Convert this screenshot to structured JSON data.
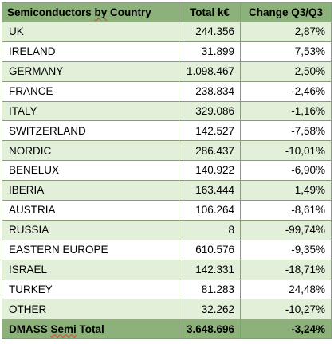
{
  "table": {
    "headers": {
      "country_prefix": "Semiconductors ",
      "country_word": "by",
      "country_suffix": " Country",
      "total": "Total k€",
      "change": "Change Q3/Q3"
    },
    "rows": [
      {
        "country": "UK",
        "total": "244.356",
        "change": "2,87%"
      },
      {
        "country": "IRELAND",
        "total": "31.899",
        "change": "7,53%"
      },
      {
        "country": "GERMANY",
        "total": "1.098.467",
        "change": "2,50%"
      },
      {
        "country": "FRANCE",
        "total": "238.834",
        "change": "-2,46%"
      },
      {
        "country": "ITALY",
        "total": "329.086",
        "change": "-1,16%"
      },
      {
        "country": "SWITZERLAND",
        "total": "142.527",
        "change": "-7,58%"
      },
      {
        "country": "NORDIC",
        "total": "286.437",
        "change": "-10,01%"
      },
      {
        "country": "BENELUX",
        "total": "140.922",
        "change": "-6,90%"
      },
      {
        "country": "IBERIA",
        "total": "163.444",
        "change": "1,49%"
      },
      {
        "country": "AUSTRIA",
        "total": "106.264",
        "change": "-8,61%"
      },
      {
        "country": "RUSSIA",
        "total": "8",
        "change": "-99,74%"
      },
      {
        "country": "EASTERN EUROPE",
        "total": "610.576",
        "change": "-9,35%"
      },
      {
        "country": "ISRAEL",
        "total": "142.331",
        "change": "-18,71%"
      },
      {
        "country": "TURKEY",
        "total": "81.283",
        "change": "24,48%"
      },
      {
        "country": "OTHER",
        "total": "32.262",
        "change": "-10,27%"
      }
    ],
    "footer": {
      "label_prefix": "DMASS ",
      "label_word": "Semi",
      "label_suffix": " Total",
      "total": "3.648.696",
      "change": "-3,24%"
    }
  },
  "colors": {
    "header_fill": "#8db17a",
    "band_fill": "#e2efd9",
    "border": "#8a9a7a"
  }
}
